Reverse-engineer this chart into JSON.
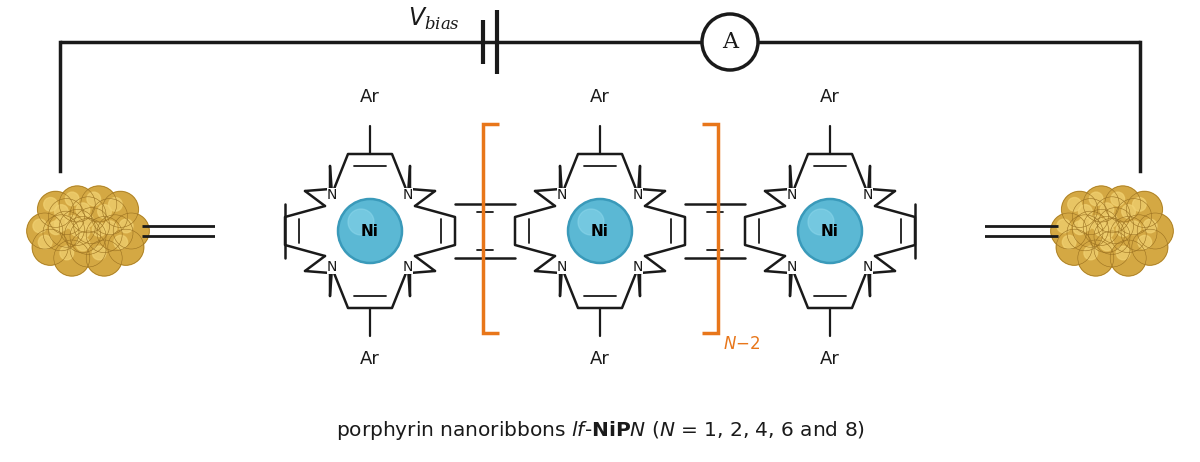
{
  "bg_color": "#ffffff",
  "line_color": "#1a1a1a",
  "orange_color": "#E8761A",
  "ni_fill": "#5BB8D4",
  "ni_edge": "#3a9aba",
  "gold_base": "#D4A843",
  "gold_hi": "#F0D070",
  "gold_shadow": "#9A7020",
  "fig_w": 12.0,
  "fig_h": 4.62,
  "dpi": 100,
  "caption": "porphyrin nanoribbons ",
  "caption2": "lf",
  "caption3": "-NiP",
  "caption4": "N",
  "caption5": " (N = 1, 2, 4, 6 and 8)"
}
